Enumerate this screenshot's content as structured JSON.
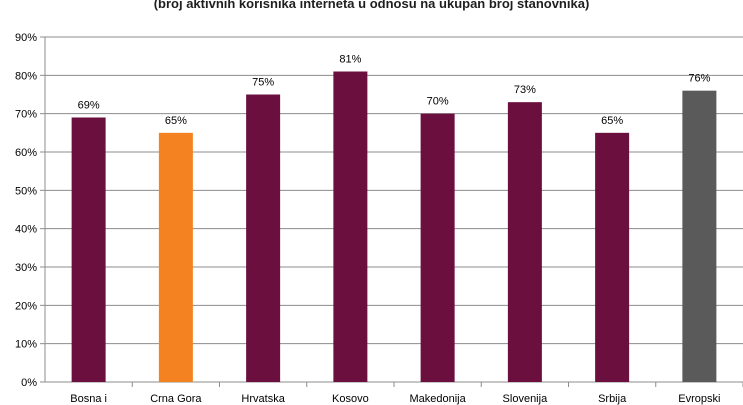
{
  "chart_data": {
    "type": "bar",
    "title": "(broj aktivnih korisnika interneta u odnosu na ukupan broj stanovnika)",
    "categories": [
      "Bosna i",
      "Crna Gora",
      "Hrvatska",
      "Kosovo",
      "Makedonija",
      "Slovenija",
      "Srbija",
      "Evropski"
    ],
    "values": [
      69,
      65,
      75,
      81,
      70,
      73,
      65,
      76
    ],
    "data_labels": [
      "69%",
      "65%",
      "75%",
      "81%",
      "70%",
      "73%",
      "65%",
      "76%"
    ],
    "colors": [
      "#6b0f3f",
      "#f58220",
      "#6b0f3f",
      "#6b0f3f",
      "#6b0f3f",
      "#6b0f3f",
      "#6b0f3f",
      "#5a5a5a"
    ],
    "y_ticks": [
      "0%",
      "10%",
      "20%",
      "30%",
      "40%",
      "50%",
      "60%",
      "70%",
      "80%",
      "90%"
    ],
    "ylim": [
      0,
      90
    ],
    "grid": true,
    "legend": "none",
    "xlabel": "",
    "ylabel": ""
  }
}
